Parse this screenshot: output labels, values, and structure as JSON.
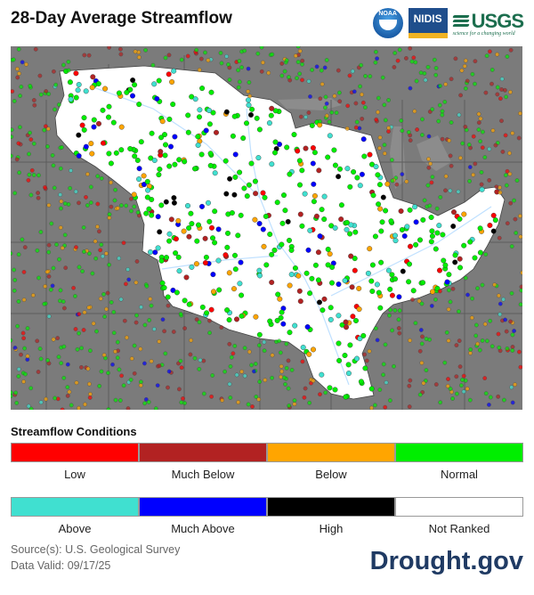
{
  "title": "28-Day Average Streamflow",
  "logos": {
    "noaa": "NOAA",
    "nidis": "NIDIS",
    "usgs": "USGS",
    "usgs_tagline": "science for a changing world"
  },
  "legend": {
    "title": "Streamflow Conditions",
    "items": [
      {
        "label": "Low",
        "color": "#ff0000"
      },
      {
        "label": "Much Below",
        "color": "#b22222"
      },
      {
        "label": "Below",
        "color": "#ffa500"
      },
      {
        "label": "Normal",
        "color": "#00ee00"
      },
      {
        "label": "Above",
        "color": "#40e0d0"
      },
      {
        "label": "Much Above",
        "color": "#0000ff"
      },
      {
        "label": "High",
        "color": "#000000"
      },
      {
        "label": "Not Ranked",
        "color": "#ffffff"
      }
    ]
  },
  "source": {
    "line1": "Source(s): U.S. Geological Survey",
    "line2": "Data Valid: 09/17/25"
  },
  "brand": "Drought.gov",
  "map": {
    "background": "#7b7b7b",
    "highlight_region": "Mississippi River Basin",
    "region_fill": "#ffffff"
  }
}
